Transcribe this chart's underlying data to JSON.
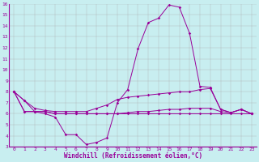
{
  "xlabel": "Windchill (Refroidissement éolien,°C)",
  "background_color": "#c8eef0",
  "line_color": "#990099",
  "grid_color": "#aaaaaa",
  "xlim": [
    -0.5,
    23.5
  ],
  "ylim": [
    3,
    16
  ],
  "yticks": [
    3,
    4,
    5,
    6,
    7,
    8,
    9,
    10,
    11,
    12,
    13,
    14,
    15,
    16
  ],
  "xticks": [
    0,
    1,
    2,
    3,
    4,
    5,
    6,
    7,
    8,
    9,
    10,
    11,
    12,
    13,
    14,
    15,
    16,
    17,
    18,
    19,
    20,
    21,
    22,
    23
  ],
  "series": [
    [
      8.0,
      7.2,
      6.2,
      6.0,
      5.7,
      4.1,
      4.1,
      3.2,
      3.4,
      3.8,
      7.0,
      8.2,
      11.9,
      14.3,
      14.7,
      15.9,
      15.7,
      13.3,
      8.5,
      8.4,
      6.4,
      6.1,
      6.4,
      6.0
    ],
    [
      8.0,
      7.2,
      6.5,
      6.3,
      6.2,
      6.2,
      6.2,
      6.2,
      6.5,
      6.8,
      7.3,
      7.5,
      7.6,
      7.7,
      7.8,
      7.9,
      8.0,
      8.0,
      8.2,
      8.3,
      6.4,
      6.1,
      6.4,
      6.0
    ],
    [
      8.0,
      6.2,
      6.2,
      6.2,
      6.0,
      6.0,
      6.0,
      6.0,
      6.0,
      6.0,
      6.0,
      6.1,
      6.2,
      6.2,
      6.3,
      6.4,
      6.4,
      6.5,
      6.5,
      6.5,
      6.2,
      6.1,
      6.4,
      6.0
    ],
    [
      8.0,
      6.2,
      6.2,
      6.2,
      6.0,
      6.0,
      6.0,
      6.0,
      6.0,
      6.0,
      6.0,
      6.0,
      6.0,
      6.0,
      6.0,
      6.0,
      6.0,
      6.0,
      6.0,
      6.0,
      6.0,
      6.0,
      6.0,
      6.0
    ]
  ]
}
